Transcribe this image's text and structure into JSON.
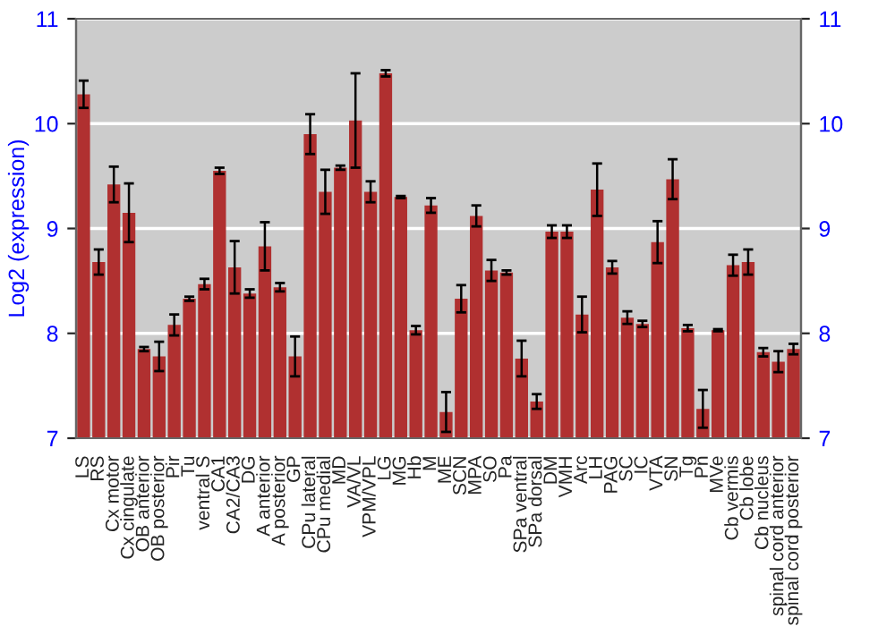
{
  "chart_data": {
    "type": "bar",
    "ylabel": "Log2 (expression)",
    "categories": [
      "LS",
      "RS",
      "Cx motor",
      "Cx cingulate",
      "OB anterior",
      "OB posterior",
      "Pir",
      "Tu",
      "ventral S",
      "CA1",
      "CA2/CA3",
      "DG",
      "A anterior",
      "A posterior",
      "GP",
      "CPu lateral",
      "CPu medial",
      "MD",
      "VA/VL",
      "VPM/VPL",
      "LG",
      "MG",
      "Hb",
      "M",
      "ME",
      "SCN",
      "MPA",
      "SO",
      "Pa",
      "SPa ventral",
      "SPa dorsal",
      "DM",
      "VMH",
      "Arc",
      "LH",
      "PAG",
      "SC",
      "IC",
      "VTA",
      "SN",
      "Tg",
      "Pn",
      "MVe",
      "Cb vermis",
      "Cb lobe",
      "Cb nucleus",
      "spinal cord anterior",
      "spinal cord posterior"
    ],
    "values": [
      10.28,
      8.68,
      9.42,
      9.15,
      7.85,
      7.78,
      8.08,
      8.33,
      8.47,
      9.55,
      8.63,
      8.38,
      8.83,
      8.44,
      7.78,
      9.9,
      9.35,
      9.58,
      10.03,
      9.35,
      10.48,
      9.3,
      8.03,
      9.22,
      7.25,
      8.33,
      9.12,
      8.6,
      8.58,
      7.76,
      7.35,
      8.97,
      8.97,
      8.18,
      9.37,
      8.63,
      8.15,
      8.09,
      8.87,
      9.47,
      8.05,
      7.28,
      8.03,
      8.65,
      8.68,
      7.82,
      7.73,
      7.85
    ],
    "errors": [
      0.13,
      0.12,
      0.17,
      0.28,
      0.02,
      0.14,
      0.1,
      0.02,
      0.05,
      0.03,
      0.25,
      0.04,
      0.23,
      0.04,
      0.19,
      0.19,
      0.21,
      0.02,
      0.45,
      0.1,
      0.03,
      0.01,
      0.04,
      0.07,
      0.19,
      0.13,
      0.1,
      0.1,
      0.02,
      0.17,
      0.07,
      0.06,
      0.06,
      0.17,
      0.25,
      0.06,
      0.06,
      0.03,
      0.2,
      0.19,
      0.03,
      0.18,
      0.01,
      0.1,
      0.12,
      0.04,
      0.1,
      0.05
    ],
    "color": "#b03030",
    "ylim": [
      7,
      11
    ],
    "yticks": [
      7,
      8,
      9,
      10,
      11
    ],
    "y2lim": [
      7,
      11
    ],
    "y2ticks": [
      7,
      8,
      9,
      10,
      11
    ],
    "grid": "y",
    "legend": false
  }
}
